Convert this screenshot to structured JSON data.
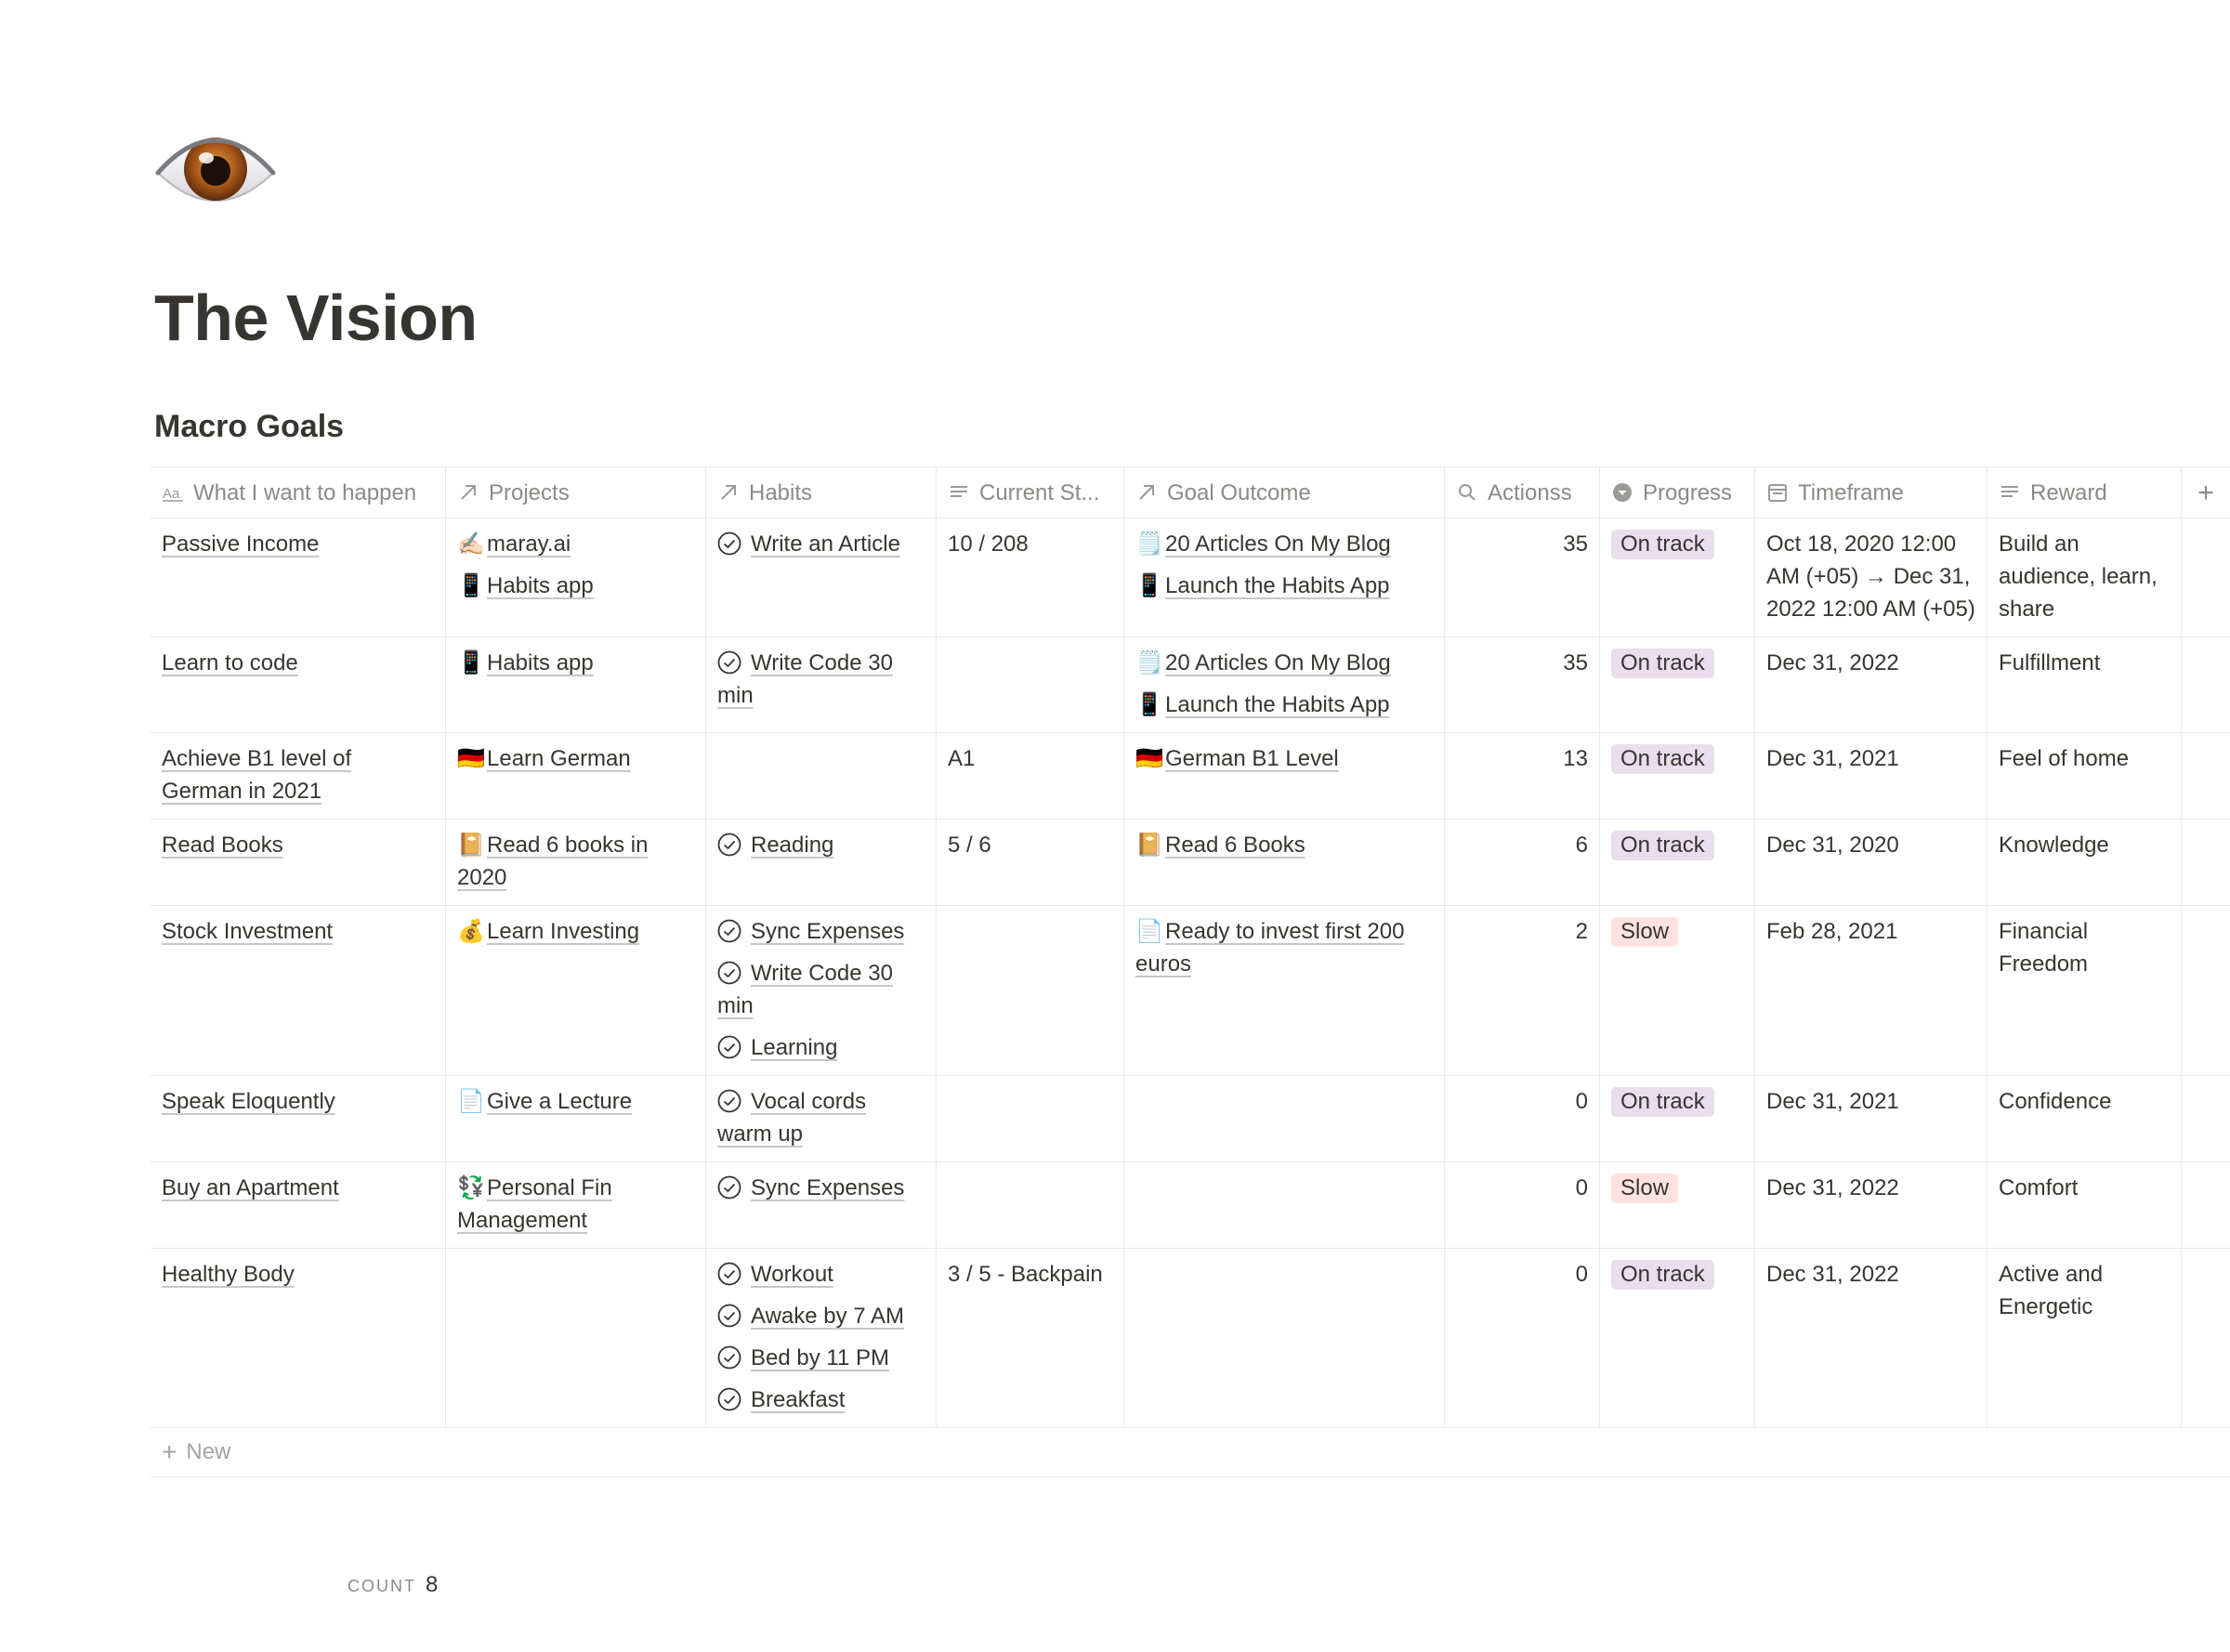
{
  "page": {
    "icon": "eye-icon",
    "title": "The Vision"
  },
  "database": {
    "title": "Macro Goals",
    "columns": [
      {
        "label": "What I want to happen",
        "icon": "title-aa-icon"
      },
      {
        "label": "Projects",
        "icon": "relation-arrow-icon"
      },
      {
        "label": "Habits",
        "icon": "relation-arrow-icon"
      },
      {
        "label": "Current St...",
        "icon": "text-lines-icon"
      },
      {
        "label": "Goal Outcome",
        "icon": "relation-arrow-icon"
      },
      {
        "label": "Actionss",
        "icon": "rollup-search-icon"
      },
      {
        "label": "Progress",
        "icon": "select-chevron-icon"
      },
      {
        "label": "Timeframe",
        "icon": "calendar-icon"
      },
      {
        "label": "Reward",
        "icon": "text-lines-icon"
      }
    ],
    "add_column_symbol": "+",
    "new_row_label": "New",
    "count_label": "COUNT",
    "count_value": "8",
    "colors": {
      "on_track_bg": "#e8deee",
      "slow_bg": "#ffe2dd",
      "text": "#37352f",
      "muted": "#8b8a86",
      "border": "#e9e9e7"
    },
    "rows": [
      {
        "title": "Passive Income",
        "projects": [
          {
            "emoji": "✍🏻",
            "label": "maray.ai"
          },
          {
            "emoji": "📱",
            "label": "Habits app"
          }
        ],
        "habits": [
          "Write an Article"
        ],
        "current": "10 / 208",
        "outcomes": [
          {
            "emoji": "🗒️",
            "label": "20 Articles On My Blog"
          },
          {
            "emoji": "📱",
            "label": "Launch the Habits App"
          }
        ],
        "actions": "35",
        "progress": "On track",
        "timeframe": "Oct 18, 2020 12:00 AM (+05) → Dec 31, 2022 12:00 AM (+05)",
        "reward": "Build an audience, learn, share"
      },
      {
        "title": "Learn to code",
        "projects": [
          {
            "emoji": "📱",
            "label": "Habits app"
          }
        ],
        "habits": [
          "Write Code 30 min"
        ],
        "current": "",
        "outcomes": [
          {
            "emoji": "🗒️",
            "label": "20 Articles On My Blog"
          },
          {
            "emoji": "📱",
            "label": "Launch the Habits App"
          }
        ],
        "actions": "35",
        "progress": "On track",
        "timeframe": "Dec 31, 2022",
        "reward": "Fulfillment"
      },
      {
        "title": "Achieve B1 level of German in 2021",
        "projects": [
          {
            "emoji": "🇩🇪",
            "label": "Learn German"
          }
        ],
        "habits": [],
        "current": "A1",
        "outcomes": [
          {
            "emoji": "🇩🇪",
            "label": "German B1 Level"
          }
        ],
        "actions": "13",
        "progress": "On track",
        "timeframe": "Dec 31, 2021",
        "reward": "Feel of home"
      },
      {
        "title": "Read Books",
        "projects": [
          {
            "emoji": "📔",
            "label": "Read 6 books in 2020"
          }
        ],
        "habits": [
          "Reading"
        ],
        "current": "5 / 6",
        "outcomes": [
          {
            "emoji": "📔",
            "label": "Read 6 Books"
          }
        ],
        "actions": "6",
        "progress": "On track",
        "timeframe": "Dec 31, 2020",
        "reward": "Knowledge"
      },
      {
        "title": "Stock Investment",
        "projects": [
          {
            "emoji": "💰",
            "label": "Learn Investing"
          }
        ],
        "habits": [
          "Sync Expenses",
          "Write Code 30 min",
          "Learning"
        ],
        "current": "",
        "outcomes": [
          {
            "emoji": "📄",
            "label": "Ready to invest first 200 euros"
          }
        ],
        "actions": "2",
        "progress": "Slow",
        "timeframe": "Feb 28, 2021",
        "reward": "Financial Freedom"
      },
      {
        "title": "Speak Eloquently",
        "projects": [
          {
            "emoji": "📄",
            "label": "Give a Lecture"
          }
        ],
        "habits": [
          "Vocal cords warm up"
        ],
        "current": "",
        "outcomes": [],
        "actions": "0",
        "progress": "On track",
        "timeframe": "Dec 31, 2021",
        "reward": "Confidence"
      },
      {
        "title": "Buy an Apartment",
        "projects": [
          {
            "emoji": "💱",
            "label": "Personal Fin Management"
          }
        ],
        "habits": [
          "Sync Expenses"
        ],
        "current": "",
        "outcomes": [],
        "actions": "0",
        "progress": "Slow",
        "timeframe": "Dec 31, 2022",
        "reward": "Comfort"
      },
      {
        "title": "Healthy Body",
        "projects": [],
        "habits": [
          "Workout",
          "Awake by 7 AM",
          "Bed by 11 PM",
          "Breakfast"
        ],
        "current": "3 / 5 - Backpain",
        "outcomes": [],
        "actions": "0",
        "progress": "On track",
        "timeframe": "Dec 31, 2022",
        "reward": "Active and Energetic"
      }
    ]
  }
}
